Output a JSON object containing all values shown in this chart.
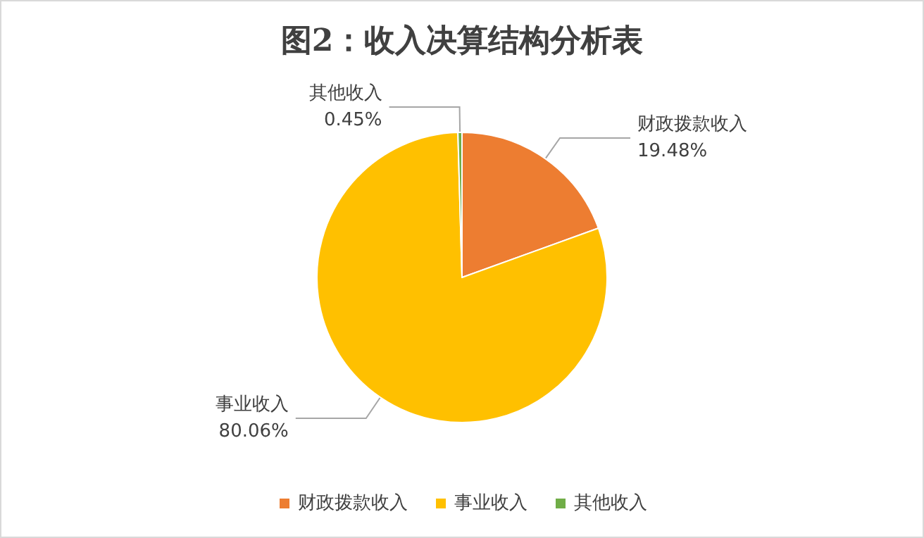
{
  "chart_data": {
    "type": "pie",
    "title": "图2：收入决算结构分析表",
    "categories": [
      "财政拨款收入",
      "事业收入",
      "其他收入"
    ],
    "values": [
      19.48,
      80.06,
      0.45
    ],
    "value_labels": [
      "19.48%",
      "80.06%",
      "0.45%"
    ],
    "colors": [
      "#ed7d31",
      "#ffc000",
      "#70ad47"
    ],
    "legend": "bottom"
  }
}
